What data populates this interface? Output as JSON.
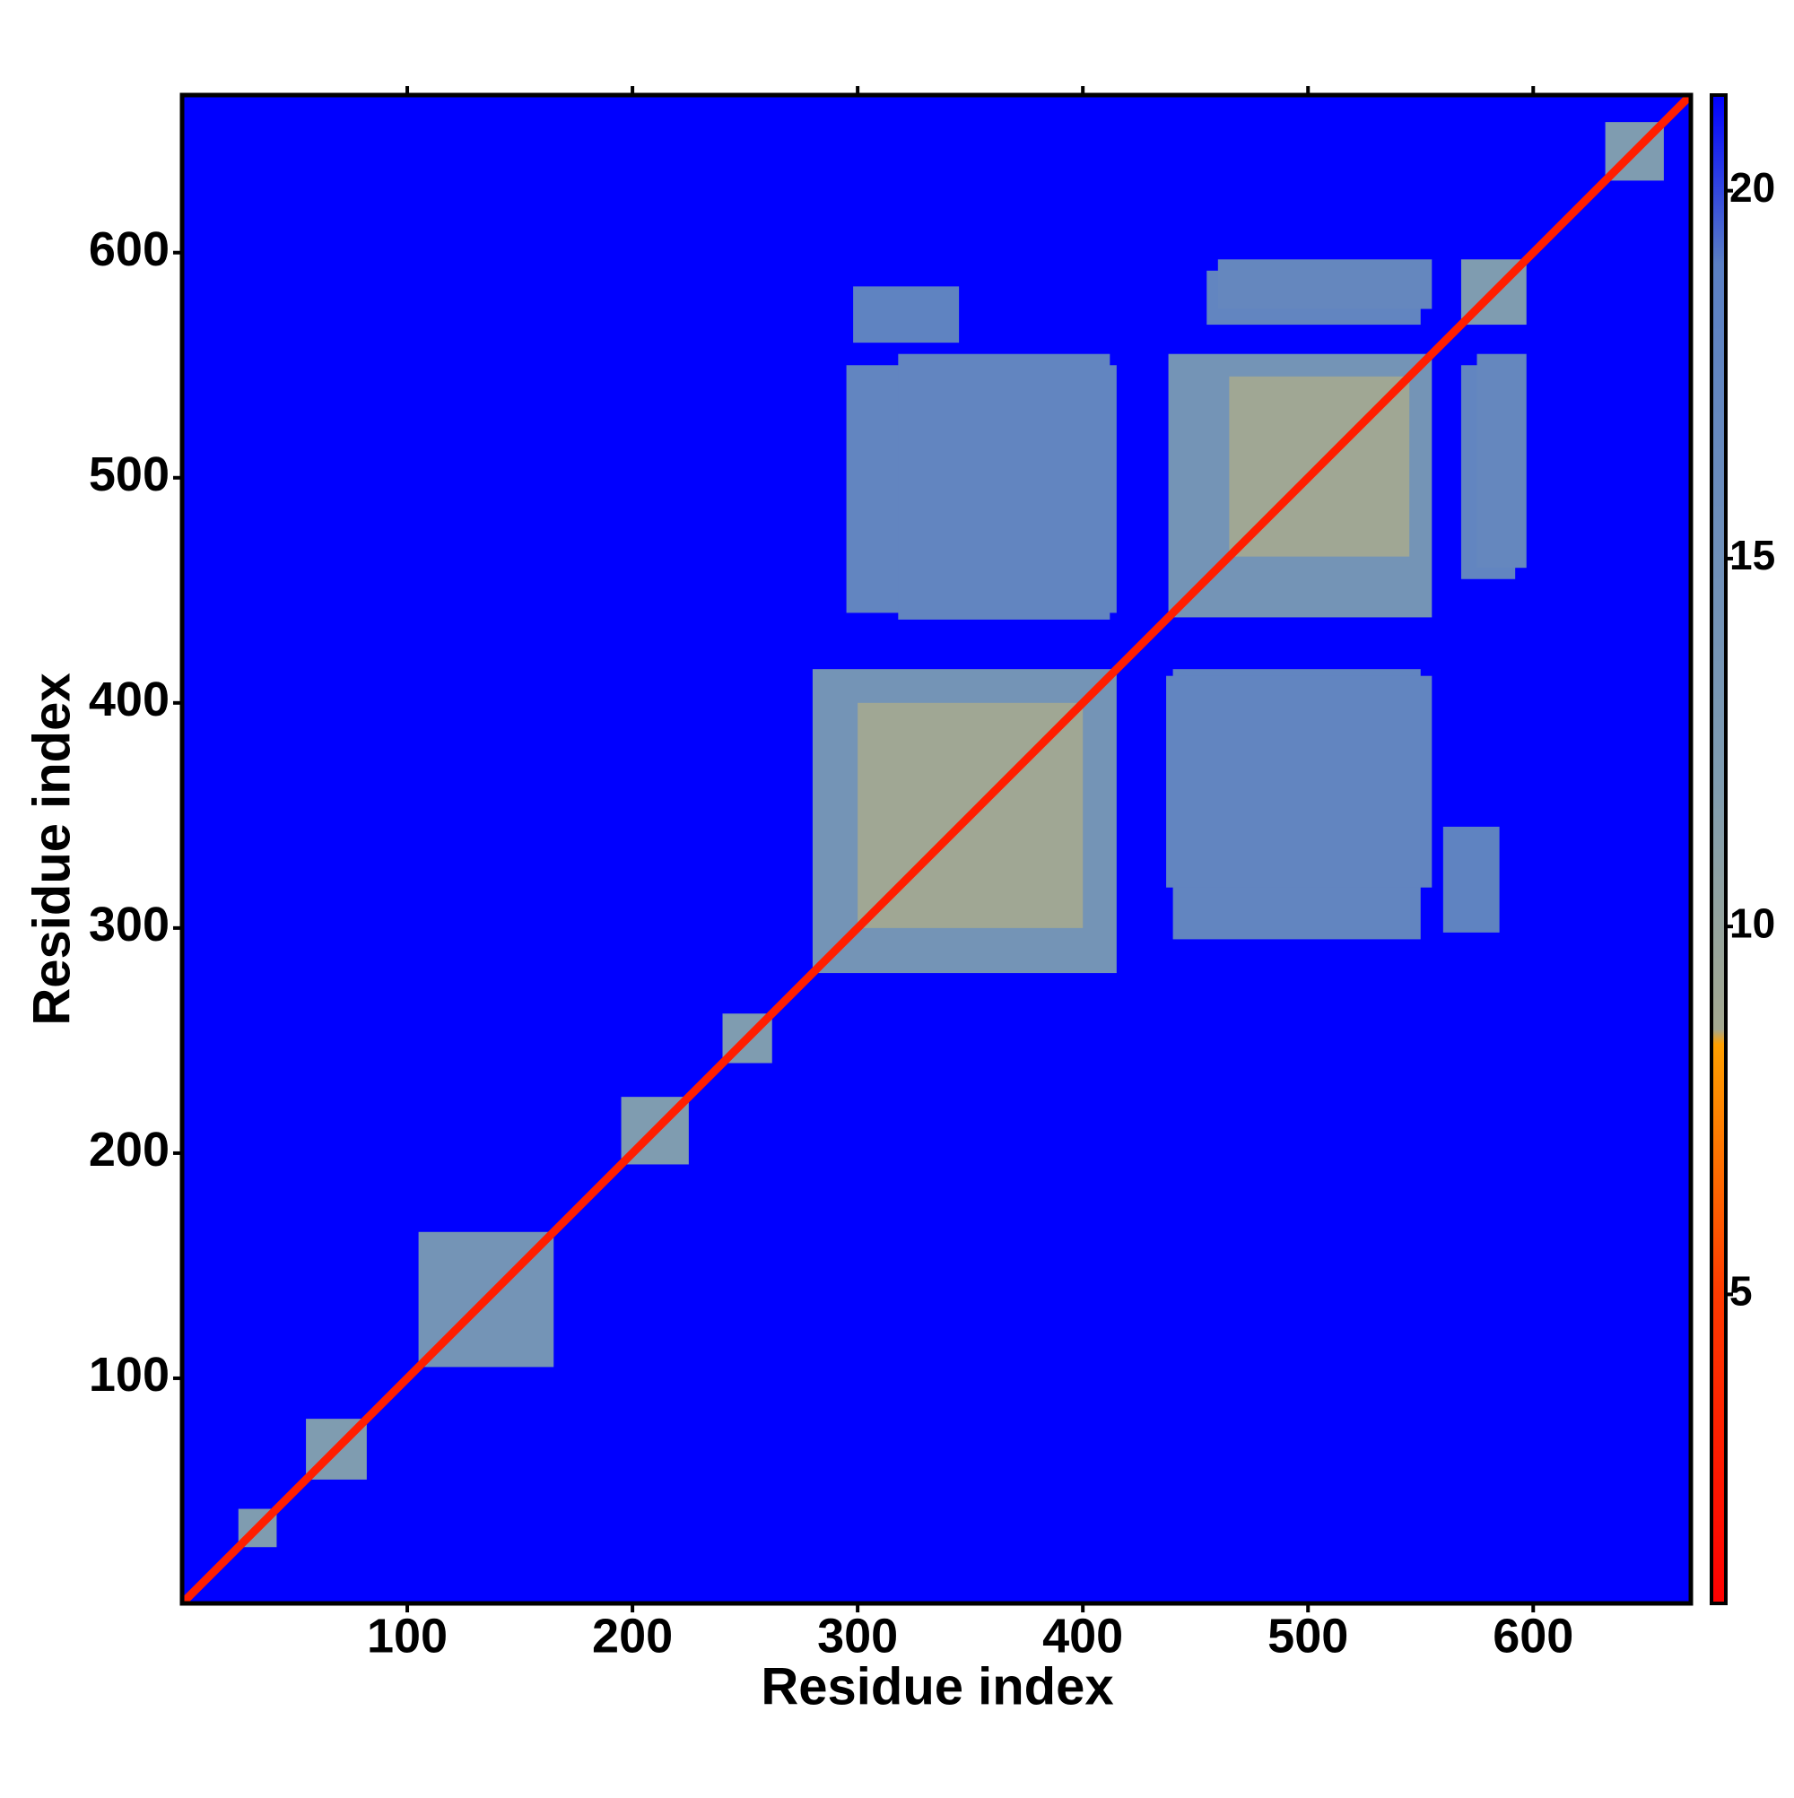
{
  "chart_data": {
    "type": "heatmap",
    "xlabel": "Residue index",
    "ylabel": "Residue index",
    "xlim": [
      0,
      670
    ],
    "ylim": [
      0,
      670
    ],
    "xticks": [
      100,
      200,
      300,
      400,
      500,
      600
    ],
    "yticks": [
      100,
      200,
      300,
      400,
      500,
      600
    ],
    "clim": [
      0.8,
      21.3
    ],
    "cticks": [
      5,
      10,
      15,
      20
    ],
    "colorscale": [
      [
        0.8,
        "#ff0000"
      ],
      [
        5,
        "#ff3a00"
      ],
      [
        8.4,
        "#ffa000"
      ],
      [
        8.6,
        "#a4a890"
      ],
      [
        12,
        "#7f9cb0"
      ],
      [
        19,
        "#5a7fc4"
      ],
      [
        21.3,
        "#0000ff"
      ]
    ],
    "background_value": 21.3,
    "symmetric": true,
    "patches": [
      {
        "x": [
          295,
          415
        ],
        "y": [
          440,
          550
        ],
        "value": 17.5
      },
      {
        "x": [
          298,
          345
        ],
        "y": [
          560,
          585
        ],
        "value": 18
      },
      {
        "x": [
          437,
          555
        ],
        "y": [
          318,
          412
        ],
        "value": 17.5
      },
      {
        "x": [
          568,
          592
        ],
        "y": [
          455,
          550
        ],
        "value": 17.5
      },
      {
        "x": [
          460,
          555
        ],
        "y": [
          575,
          597
        ],
        "value": 17
      },
      {
        "x": [
          280,
          415
        ],
        "y": [
          280,
          415
        ],
        "value": 14
      },
      {
        "x": [
          438,
          555
        ],
        "y": [
          438,
          555
        ],
        "value": 14
      },
      {
        "x": [
          105,
          165
        ],
        "y": [
          105,
          165
        ],
        "value": 14
      },
      {
        "x": [
          55,
          82
        ],
        "y": [
          55,
          82
        ],
        "value": 12
      },
      {
        "x": [
          195,
          225
        ],
        "y": [
          195,
          225
        ],
        "value": 12
      },
      {
        "x": [
          568,
          597
        ],
        "y": [
          568,
          597
        ],
        "value": 12
      },
      {
        "x": [
          632,
          658
        ],
        "y": [
          632,
          658
        ],
        "value": 12
      },
      {
        "x": [
          25,
          42
        ],
        "y": [
          25,
          42
        ],
        "value": 12
      },
      {
        "x": [
          240,
          262
        ],
        "y": [
          240,
          262
        ],
        "value": 12
      },
      {
        "x": [
          300,
          400
        ],
        "y": [
          300,
          400
        ],
        "value": 9
      },
      {
        "x": [
          465,
          545
        ],
        "y": [
          465,
          545
        ],
        "value": 9
      }
    ],
    "diagonal_value": 3
  }
}
